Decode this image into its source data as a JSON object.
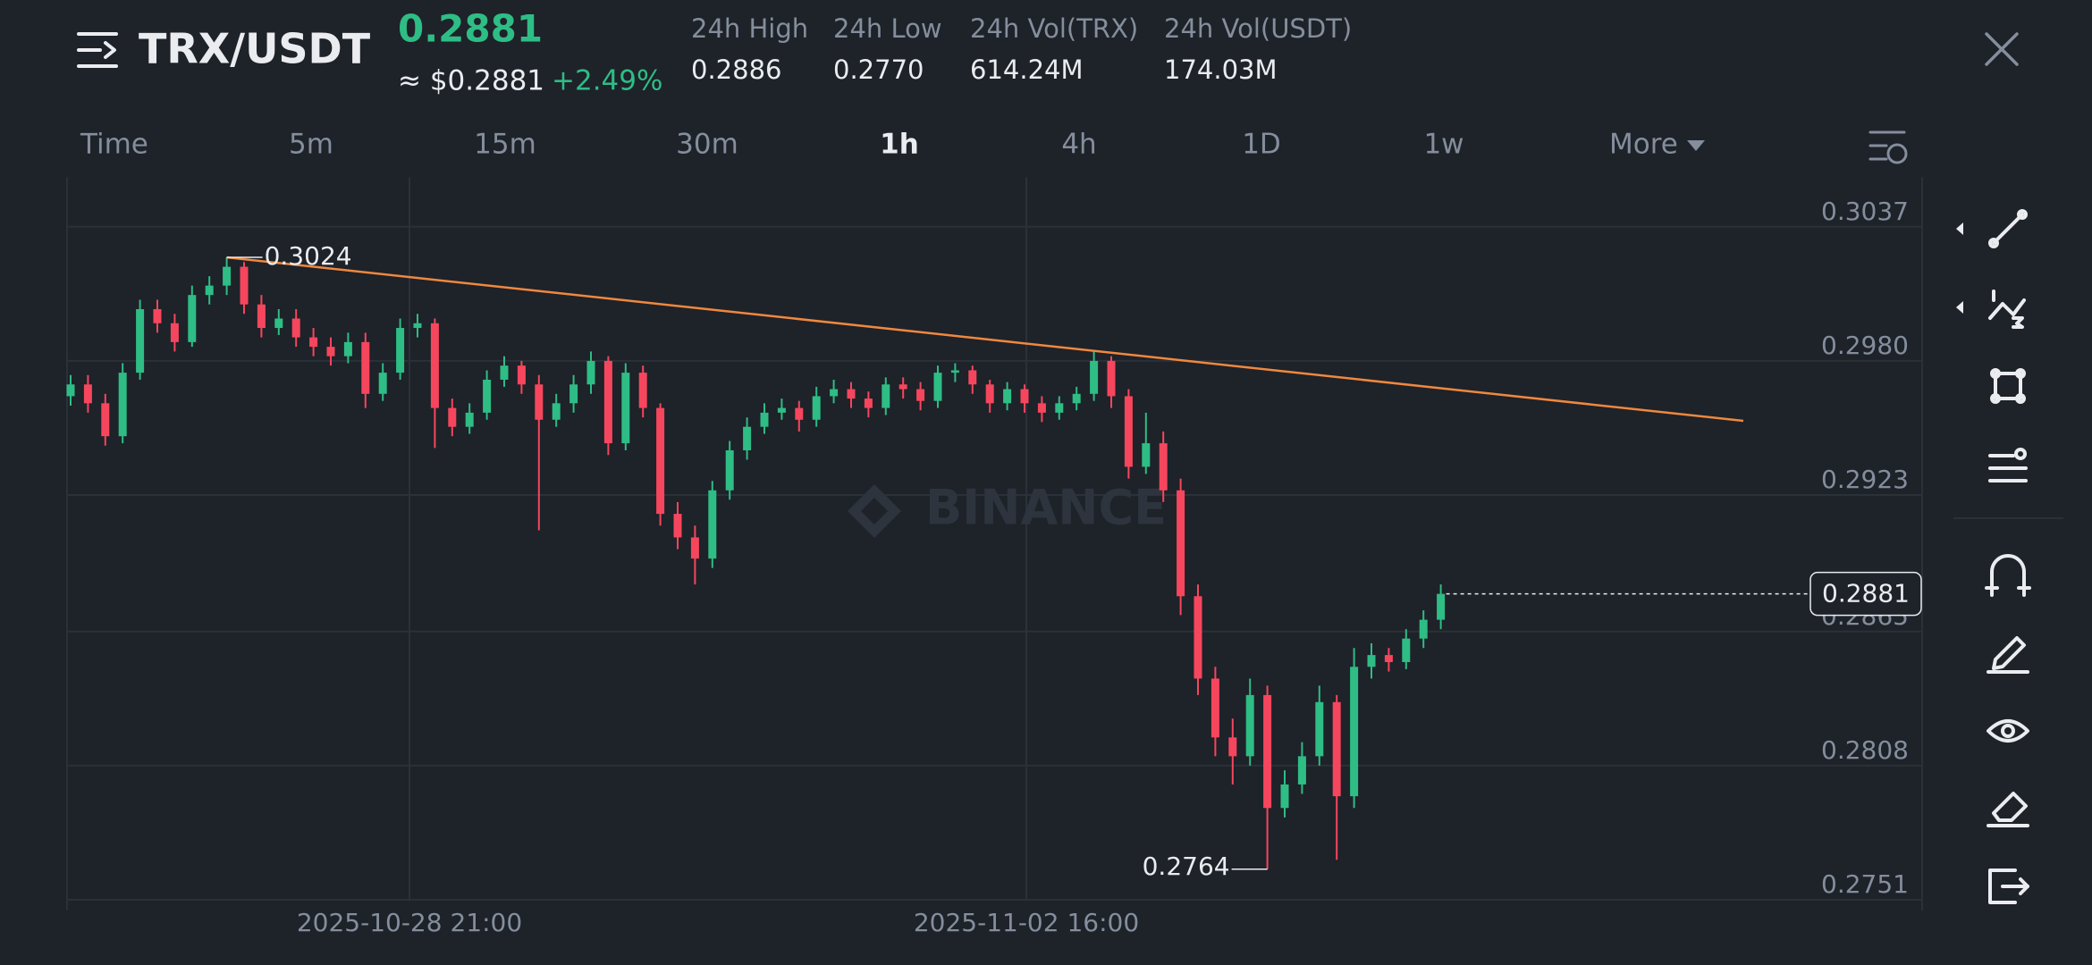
{
  "header": {
    "pair": "TRX/USDT",
    "price": "0.2881",
    "price_usd": "≈ $0.2881",
    "change": "+2.49%",
    "stats": [
      {
        "label": "24h High",
        "value": "0.2886"
      },
      {
        "label": "24h Low",
        "value": "0.2770"
      },
      {
        "label": "24h Vol(TRX)",
        "value": "614.24M"
      },
      {
        "label": "24h Vol(USDT)",
        "value": "174.03M"
      }
    ]
  },
  "tabs": [
    "Time",
    "5m",
    "15m",
    "30m",
    "1h",
    "4h",
    "1D",
    "1w",
    "More"
  ],
  "active_tab_index": 4,
  "chart": {
    "type": "candlestick",
    "watermark": "BINANCE",
    "ylim": [
      0.2751,
      0.3058
    ],
    "yticks": [
      0.2751,
      0.2808,
      0.2865,
      0.2923,
      {
        "value": 0.298,
        "label": "0.2980"
      },
      0.3037
    ],
    "xtick_labels": [
      "2025-10-28 21:00",
      "2025-11-02 16:00"
    ],
    "colors": {
      "up": "#2ebd85",
      "down": "#f6465d",
      "trendline": "#f0883e"
    },
    "last_price": 0.2881,
    "max_label": 0.3024,
    "min_label": 0.2764,
    "open": [
      0.2965,
      0.297,
      0.2962,
      0.2948,
      0.2975,
      0.3002,
      0.2996,
      0.2988,
      0.3008,
      0.3012,
      0.302,
      0.3004,
      0.2994,
      0.2998,
      0.299,
      0.2986,
      0.2982,
      0.2988,
      0.2966,
      0.2975,
      0.2994,
      0.2996,
      0.296,
      0.2952,
      0.2958,
      0.2972,
      0.2978,
      0.297,
      0.2955,
      0.2962,
      0.297,
      0.298,
      0.2945,
      0.2975,
      0.296,
      0.2915,
      0.2905,
      0.2896,
      0.2925,
      0.2942,
      0.2952,
      0.2958,
      0.296,
      0.2955,
      0.2965,
      0.2968,
      0.2964,
      0.296,
      0.297,
      0.2968,
      0.2963,
      0.2975,
      0.2976,
      0.297,
      0.2962,
      0.2968,
      0.2962,
      0.2958,
      0.2962,
      0.2966,
      0.298,
      0.2965,
      0.2935,
      0.2945,
      0.2925,
      0.288,
      0.2845,
      0.282,
      0.2812,
      0.2838,
      0.279,
      0.28,
      0.2812,
      0.2835,
      0.2795,
      0.285,
      0.2855,
      0.2852,
      0.2862,
      0.287
    ],
    "high": [
      0.2974,
      0.2974,
      0.2966,
      0.2979,
      0.3006,
      0.3006,
      0.3,
      0.3012,
      0.3016,
      0.3024,
      0.3022,
      0.3008,
      0.3002,
      0.3002,
      0.2994,
      0.299,
      0.2992,
      0.2992,
      0.2979,
      0.2998,
      0.3,
      0.2998,
      0.2964,
      0.2962,
      0.2976,
      0.2982,
      0.298,
      0.2974,
      0.2966,
      0.2974,
      0.2984,
      0.2982,
      0.2979,
      0.2978,
      0.2962,
      0.292,
      0.291,
      0.2929,
      0.2946,
      0.2956,
      0.2962,
      0.2964,
      0.2963,
      0.2969,
      0.2972,
      0.2971,
      0.2967,
      0.2973,
      0.2973,
      0.2971,
      0.2978,
      0.2979,
      0.2978,
      0.2972,
      0.2971,
      0.297,
      0.2965,
      0.2965,
      0.2969,
      0.2984,
      0.2982,
      0.2968,
      0.2958,
      0.295,
      0.293,
      0.2885,
      0.285,
      0.2828,
      0.2845,
      0.2842,
      0.2806,
      0.2818,
      0.2842,
      0.2838,
      0.2858,
      0.286,
      0.2858,
      0.2866,
      0.2874,
      0.2885
    ],
    "low": [
      0.2961,
      0.2958,
      0.2944,
      0.2945,
      0.2972,
      0.2992,
      0.2984,
      0.2986,
      0.3004,
      0.3008,
      0.3,
      0.299,
      0.2991,
      0.2986,
      0.2982,
      0.2978,
      0.2979,
      0.296,
      0.2963,
      0.2972,
      0.299,
      0.2943,
      0.2948,
      0.2949,
      0.2955,
      0.2969,
      0.2966,
      0.2908,
      0.2952,
      0.2958,
      0.2966,
      0.294,
      0.2942,
      0.2956,
      0.291,
      0.29,
      0.2885,
      0.2892,
      0.2921,
      0.2938,
      0.2949,
      0.2955,
      0.295,
      0.2952,
      0.2962,
      0.296,
      0.2956,
      0.2957,
      0.2964,
      0.2959,
      0.296,
      0.2971,
      0.2966,
      0.2958,
      0.2959,
      0.2958,
      0.2954,
      0.2955,
      0.2959,
      0.2963,
      0.296,
      0.293,
      0.2932,
      0.292,
      0.2872,
      0.2838,
      0.2812,
      0.28,
      0.2808,
      0.2764,
      0.2786,
      0.2796,
      0.2808,
      0.2768,
      0.279,
      0.2845,
      0.2848,
      0.2849,
      0.2858,
      0.2866
    ],
    "close": [
      0.297,
      0.2962,
      0.2948,
      0.2975,
      0.3002,
      0.2996,
      0.2988,
      0.3008,
      0.3012,
      0.302,
      0.3004,
      0.2994,
      0.2998,
      0.299,
      0.2986,
      0.2982,
      0.2988,
      0.2966,
      0.2975,
      0.2994,
      0.2996,
      0.296,
      0.2952,
      0.2958,
      0.2972,
      0.2978,
      0.297,
      0.2955,
      0.2962,
      0.297,
      0.298,
      0.2945,
      0.2975,
      0.296,
      0.2915,
      0.2905,
      0.2896,
      0.2925,
      0.2942,
      0.2952,
      0.2958,
      0.296,
      0.2955,
      0.2965,
      0.2968,
      0.2964,
      0.296,
      0.297,
      0.2968,
      0.2963,
      0.2975,
      0.2976,
      0.297,
      0.2962,
      0.2968,
      0.2962,
      0.2958,
      0.2962,
      0.2966,
      0.298,
      0.2965,
      0.2935,
      0.2945,
      0.2925,
      0.288,
      0.2845,
      0.282,
      0.2812,
      0.2838,
      0.279,
      0.28,
      0.2812,
      0.2835,
      0.2795,
      0.285,
      0.2855,
      0.2852,
      0.2862,
      0.287,
      0.2881
    ]
  }
}
